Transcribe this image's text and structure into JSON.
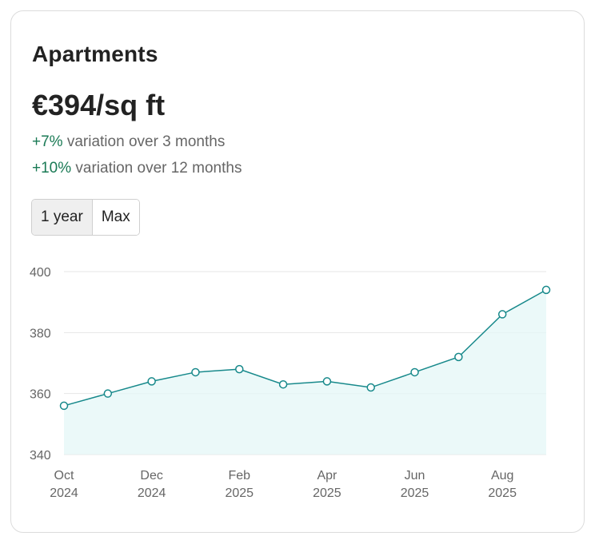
{
  "card": {
    "title": "Apartments",
    "price": "€394/sq ft",
    "variations": [
      {
        "pct": "+7%",
        "text": "variation over 3 months"
      },
      {
        "pct": "+10%",
        "text": "variation over 12 months"
      }
    ],
    "range_buttons": [
      {
        "label": "1 year",
        "active": true
      },
      {
        "label": "Max",
        "active": false
      }
    ]
  },
  "colors": {
    "line": "#17898b",
    "fill": "#e6f7f8",
    "positive": "#1a7a55",
    "grid": "#e6e6e6"
  },
  "chart_data": {
    "type": "area",
    "x": [
      "Oct 2024",
      "Nov 2024",
      "Dec 2024",
      "Jan 2025",
      "Feb 2025",
      "Mar 2025",
      "Apr 2025",
      "May 2025",
      "Jun 2025",
      "Jul 2025",
      "Aug 2025",
      "Sep 2025"
    ],
    "values": [
      356,
      360,
      364,
      367,
      368,
      363,
      364,
      362,
      367,
      372,
      386,
      394
    ],
    "ylim": [
      340,
      400
    ],
    "yticks": [
      "340",
      "360",
      "380",
      "400"
    ],
    "xtick_labels": [
      {
        "month": "Oct",
        "year": "2024"
      },
      {
        "month": "Dec",
        "year": "2024"
      },
      {
        "month": "Feb",
        "year": "2025"
      },
      {
        "month": "Apr",
        "year": "2025"
      },
      {
        "month": "Jun",
        "year": "2025"
      },
      {
        "month": "Aug",
        "year": "2025"
      }
    ],
    "grid": true,
    "legend": "none"
  }
}
